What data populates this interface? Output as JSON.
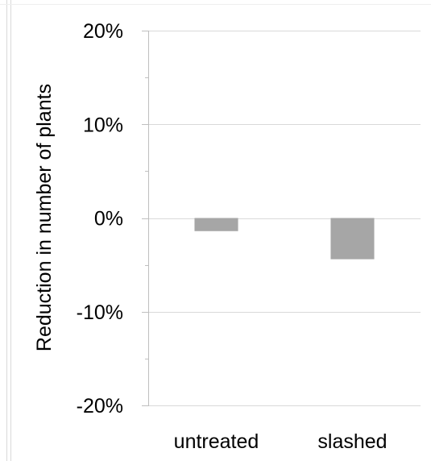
{
  "chart_data": {
    "type": "bar",
    "categories": [
      "untreated",
      "slashed"
    ],
    "values": [
      -1.4,
      -4.4
    ],
    "value_unit": "%",
    "title": "",
    "xlabel": "",
    "ylabel": "Reduction in number of plants",
    "ylim": [
      -20,
      20
    ],
    "yticks": [
      20,
      10,
      0,
      -10,
      -20
    ],
    "ytick_labels": [
      "20%",
      "10%",
      "0%",
      "-10%",
      "-20%"
    ],
    "grid": true,
    "legend": "none",
    "bar_color": "#a6a6a6",
    "grid_color": "#d9d9d9"
  }
}
